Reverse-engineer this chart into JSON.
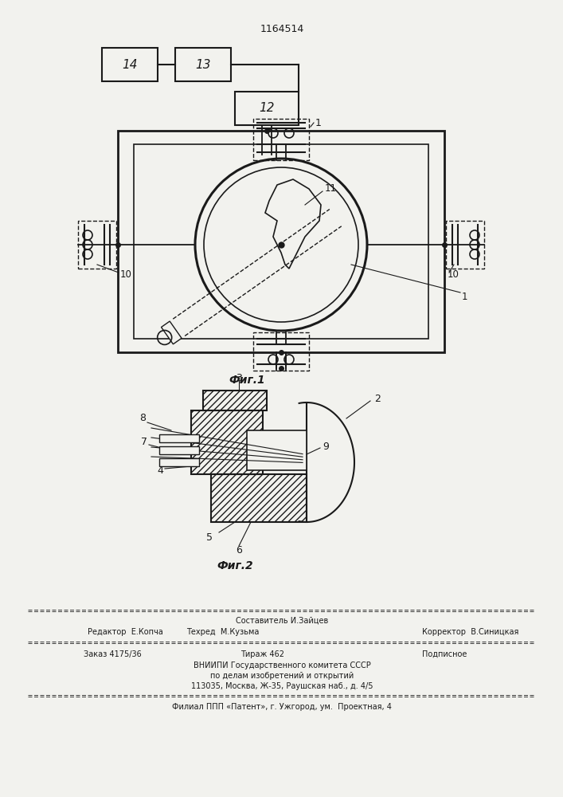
{
  "patent_number": "1164514",
  "bg_color": "#f2f2ee",
  "line_color": "#1a1a1a",
  "fig1_label": "Фиг.1",
  "fig2_label": "Фиг.2",
  "box14_label": "14",
  "box13_label": "13",
  "box12_label": "12",
  "footer_sestavitel": "Составитель И.Зайцев",
  "footer_redaktor": "Редактор  Е.Копча",
  "footer_tehred": "Техред  М.Кузьма",
  "footer_korrektor": "Корректор  В.Синицкая",
  "footer_zakaz": "Заказ 4175/36",
  "footer_tiraz": "Тираж 462",
  "footer_podpisnoe": "Подписное",
  "footer_vniipи": "ВНИИПИ Государственного комитета СССР",
  "footer_po_delam": "по делам изобретений и открытий",
  "footer_address": "113035, Москва, Ж-35, Раушская наб., д. 4/5",
  "footer_filial": "Филиал ППП «Патент», г. Ужгород, ум.  Проектная, 4"
}
